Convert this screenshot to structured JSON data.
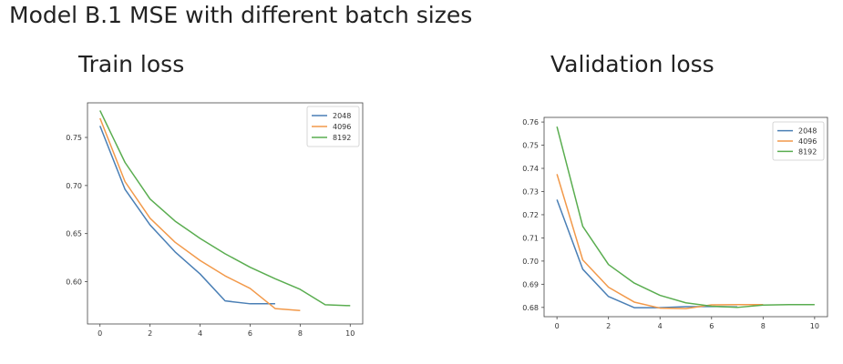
{
  "page": {
    "title": "Model B.1 MSE with different batch sizes"
  },
  "colors": {
    "2048": "#4a7fb5",
    "4096": "#f2994a",
    "8192": "#5aad50",
    "axis": "#444444"
  },
  "chart_data": [
    {
      "type": "line",
      "title": "Train loss",
      "xlabel": "",
      "ylabel": "",
      "xlim": [
        -0.5,
        10.5
      ],
      "ylim": [
        0.556,
        0.786
      ],
      "xticks": [
        0,
        2,
        4,
        6,
        8,
        10
      ],
      "yticks": [
        0.6,
        0.65,
        0.7,
        0.75
      ],
      "ytick_labels": [
        "0.60",
        "0.65",
        "0.70",
        "0.75"
      ],
      "legend": "top-right",
      "grid": false,
      "series": [
        {
          "name": "2048",
          "x": [
            0,
            1,
            2,
            3,
            4,
            5,
            6,
            7
          ],
          "values": [
            0.762,
            0.696,
            0.659,
            0.631,
            0.608,
            0.58,
            0.577,
            0.577
          ]
        },
        {
          "name": "4096",
          "x": [
            0,
            1,
            2,
            3,
            4,
            5,
            6,
            7,
            8
          ],
          "values": [
            0.77,
            0.704,
            0.666,
            0.641,
            0.622,
            0.606,
            0.593,
            0.572,
            0.57
          ]
        },
        {
          "name": "8192",
          "x": [
            0,
            1,
            2,
            3,
            4,
            5,
            6,
            7,
            8,
            9,
            10
          ],
          "values": [
            0.778,
            0.724,
            0.686,
            0.663,
            0.645,
            0.629,
            0.615,
            0.603,
            0.592,
            0.576,
            0.575
          ]
        }
      ]
    },
    {
      "type": "line",
      "title": "Validation loss",
      "xlabel": "",
      "ylabel": "",
      "xlim": [
        -0.5,
        10.5
      ],
      "ylim": [
        0.676,
        0.762
      ],
      "xticks": [
        0,
        2,
        4,
        6,
        8,
        10
      ],
      "yticks": [
        0.68,
        0.69,
        0.7,
        0.71,
        0.72,
        0.73,
        0.74,
        0.75,
        0.76
      ],
      "ytick_labels": [
        "0.68",
        "0.69",
        "0.70",
        "0.71",
        "0.72",
        "0.73",
        "0.74",
        "0.75",
        "0.76"
      ],
      "legend": "top-right",
      "grid": false,
      "series": [
        {
          "name": "2048",
          "x": [
            0,
            1,
            2,
            3,
            4,
            5,
            6,
            7
          ],
          "values": [
            0.7265,
            0.6965,
            0.6847,
            0.6799,
            0.6799,
            0.6803,
            0.6804,
            0.6802
          ]
        },
        {
          "name": "4096",
          "x": [
            0,
            1,
            2,
            3,
            4,
            5,
            6,
            7,
            8
          ],
          "values": [
            0.7375,
            0.7005,
            0.6887,
            0.6823,
            0.6797,
            0.6795,
            0.6811,
            0.6812,
            0.6812
          ]
        },
        {
          "name": "8192",
          "x": [
            0,
            1,
            2,
            3,
            4,
            5,
            6,
            7,
            8,
            9,
            10
          ],
          "values": [
            0.758,
            0.715,
            0.6985,
            0.6905,
            0.6852,
            0.682,
            0.6805,
            0.68,
            0.681,
            0.6812,
            0.6812
          ]
        }
      ]
    }
  ]
}
